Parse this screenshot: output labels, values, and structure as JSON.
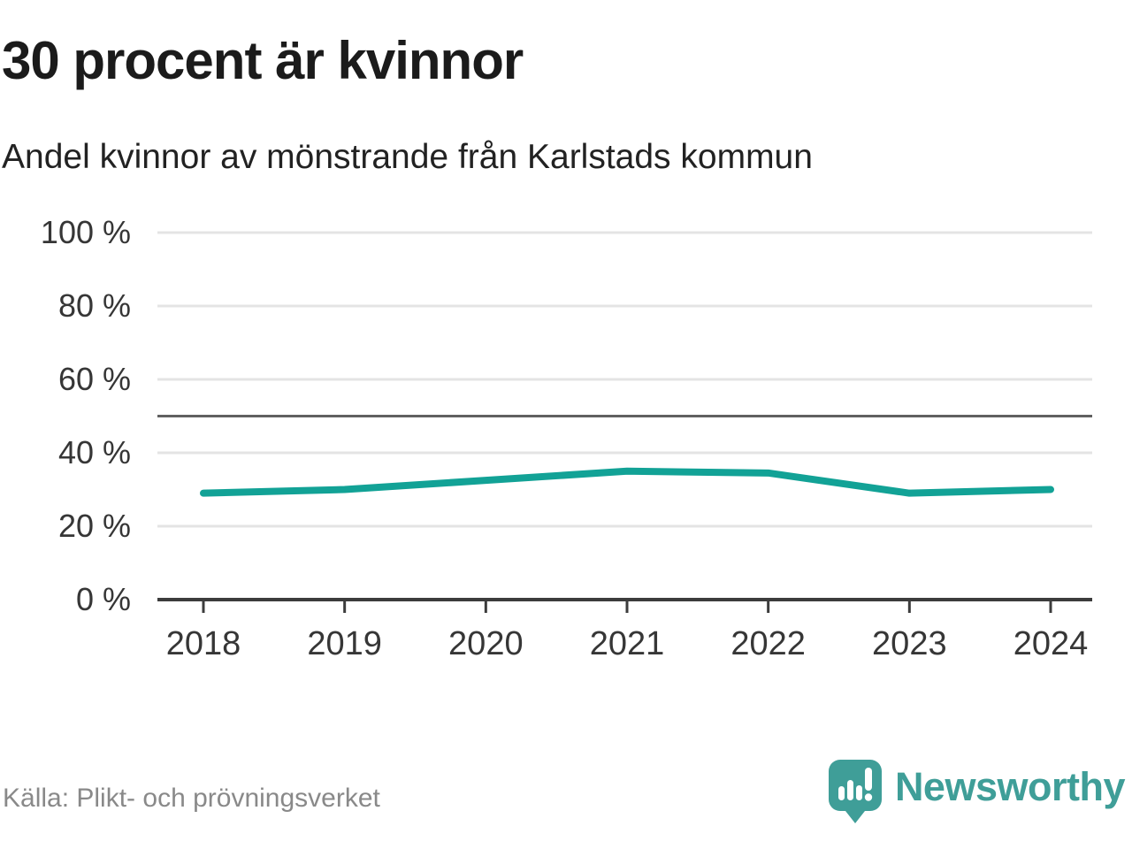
{
  "header": {
    "title": "30 procent är kvinnor",
    "subtitle": "Andel kvinnor av mönstrande från Karlstads kommun"
  },
  "footer": {
    "source": "Källa: Plikt- och prövningsverket",
    "brand": "Newsworthy"
  },
  "colors": {
    "line": "#12a296",
    "grid": "#e4e4e4",
    "reference_line": "#606060",
    "axis": "#3c3c3c",
    "tick_label": "#363636",
    "title": "#1b1b1b",
    "subtitle": "#222222",
    "source": "#898989",
    "brand": "#3f9e98"
  },
  "chart_data": {
    "type": "line",
    "title": "30 procent är kvinnor",
    "subtitle": "Andel kvinnor av mönstrande från Karlstads kommun",
    "x": [
      2018,
      2019,
      2020,
      2021,
      2022,
      2023,
      2024
    ],
    "series": [
      {
        "name": "Andel kvinnor av mönstrande",
        "values": [
          29,
          30,
          32.5,
          35,
          34.5,
          29,
          30
        ]
      }
    ],
    "ylim": [
      0,
      100
    ],
    "yticks": [
      0,
      20,
      40,
      60,
      80,
      100
    ],
    "ytick_format": "{v} %",
    "reference_line": 50,
    "grid": "horizontal",
    "legend": "none",
    "source": "Källa: Plikt- och prövningsverket"
  }
}
